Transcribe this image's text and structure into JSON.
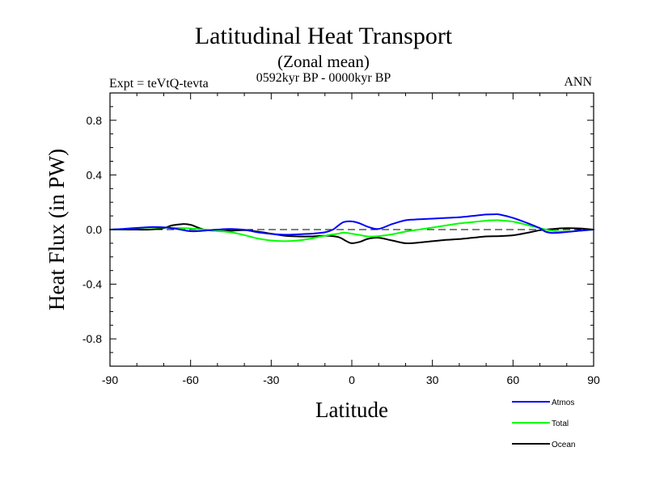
{
  "chart_data": {
    "type": "line",
    "title": "Latitudinal Heat Transport",
    "subtitle": "(Zonal mean)",
    "period": "0592kyr BP - 0000kyr BP",
    "left_label": "Expt = teVtQ-tevta",
    "right_label": "ANN",
    "xlabel": "Latitude",
    "ylabel": "Heat Flux (in PW)",
    "xlim": [
      -90,
      90
    ],
    "ylim": [
      -1.0,
      1.0
    ],
    "xticks": [
      -90,
      -60,
      -30,
      0,
      30,
      60,
      90
    ],
    "yticks": [
      -0.8,
      -0.4,
      0.0,
      0.4,
      0.8
    ],
    "ytick_labels": [
      "-0.8",
      "-0.4",
      "0.0",
      "0.4",
      "0.8"
    ],
    "reference_line": 0.0,
    "legend_position": "bottom-right",
    "series": [
      {
        "name": "Atmos",
        "color": "#0000ff",
        "x": [
          -90,
          -85,
          -80,
          -75,
          -70,
          -65,
          -60,
          -55,
          -50,
          -45,
          -40,
          -35,
          -30,
          -25,
          -20,
          -15,
          -10,
          -7,
          -5,
          -3,
          0,
          3,
          6,
          10,
          15,
          20,
          25,
          30,
          35,
          40,
          45,
          50,
          53,
          55,
          60,
          65,
          70,
          72,
          75,
          80,
          85,
          90
        ],
        "y": [
          0.0,
          0.005,
          0.012,
          0.018,
          0.016,
          0.005,
          -0.012,
          -0.008,
          0.0,
          0.004,
          -0.002,
          -0.02,
          -0.032,
          -0.038,
          -0.035,
          -0.03,
          -0.02,
          0.0,
          0.03,
          0.055,
          0.06,
          0.045,
          0.02,
          0.005,
          0.04,
          0.068,
          0.075,
          0.08,
          0.085,
          0.09,
          0.1,
          0.11,
          0.112,
          0.11,
          0.085,
          0.05,
          0.01,
          -0.015,
          -0.025,
          -0.018,
          -0.008,
          0.0
        ]
      },
      {
        "name": "Total",
        "color": "#00ff00",
        "x": [
          -90,
          -85,
          -80,
          -75,
          -70,
          -65,
          -60,
          -55,
          -50,
          -45,
          -40,
          -35,
          -30,
          -25,
          -20,
          -15,
          -10,
          -5,
          -3,
          0,
          3,
          6,
          10,
          15,
          20,
          25,
          30,
          35,
          40,
          45,
          50,
          53,
          55,
          60,
          65,
          70,
          75,
          80,
          85,
          90
        ],
        "y": [
          0.0,
          0.005,
          0.01,
          0.015,
          0.015,
          0.012,
          0.008,
          0.0,
          -0.01,
          -0.02,
          -0.04,
          -0.065,
          -0.08,
          -0.085,
          -0.08,
          -0.065,
          -0.045,
          -0.03,
          -0.022,
          -0.03,
          -0.04,
          -0.05,
          -0.048,
          -0.035,
          -0.015,
          0.0,
          0.015,
          0.03,
          0.045,
          0.055,
          0.065,
          0.068,
          0.068,
          0.058,
          0.035,
          0.01,
          -0.01,
          -0.015,
          -0.008,
          0.0
        ]
      },
      {
        "name": "Ocean",
        "color": "#000000",
        "x": [
          -90,
          -85,
          -80,
          -75,
          -70,
          -67,
          -63,
          -60,
          -58,
          -55,
          -50,
          -45,
          -40,
          -35,
          -30,
          -25,
          -20,
          -15,
          -10,
          -5,
          -2,
          0,
          3,
          6,
          10,
          15,
          20,
          25,
          30,
          35,
          40,
          45,
          50,
          55,
          60,
          65,
          70,
          75,
          80,
          85,
          90
        ],
        "y": [
          0.0,
          0.0,
          0.0,
          0.0,
          0.01,
          0.03,
          0.04,
          0.035,
          0.02,
          0.0,
          -0.01,
          -0.008,
          -0.005,
          -0.015,
          -0.03,
          -0.045,
          -0.05,
          -0.05,
          -0.045,
          -0.055,
          -0.085,
          -0.1,
          -0.09,
          -0.068,
          -0.06,
          -0.08,
          -0.1,
          -0.095,
          -0.085,
          -0.075,
          -0.07,
          -0.06,
          -0.05,
          -0.048,
          -0.042,
          -0.025,
          -0.005,
          0.005,
          0.01,
          0.008,
          0.0
        ]
      }
    ]
  }
}
